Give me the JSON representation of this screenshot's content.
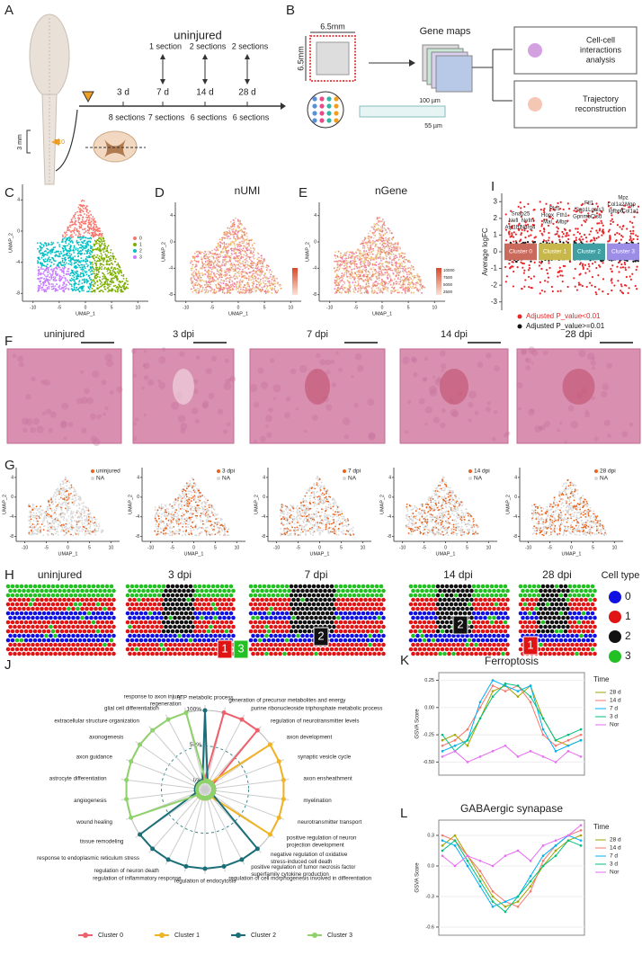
{
  "panels": {
    "A": {
      "label": "A",
      "title": "uninjured",
      "times": [
        "3 d",
        "7 d",
        "14 d",
        "28 d"
      ],
      "top_sections": [
        "1 section",
        "2 sections",
        "2 sections"
      ],
      "bottom_sections": [
        "8 sections",
        "7 sections",
        "6 sections",
        "6 sections"
      ],
      "site": "T10",
      "length": "3 mm"
    },
    "B": {
      "label": "B",
      "width": "6.5mm",
      "height": "6.5mm",
      "gene_maps": "Gene maps",
      "spot_size": "100 µm",
      "spot_gap": "55 µm",
      "analyses": [
        [
          "Cell-cell",
          "interactions",
          "analysis"
        ],
        [
          "Trajectory",
          "reconstruction"
        ]
      ]
    },
    "umap": {
      "x_label": "UMAP_1",
      "y_label": "UMAP_2",
      "xlim": [
        -12,
        12
      ],
      "ylim": [
        -9,
        6
      ],
      "xticks": [
        -10,
        -5,
        0,
        5,
        10
      ],
      "yticks": [
        -8,
        -4,
        0,
        4
      ]
    },
    "C": {
      "label": "C",
      "cluster_ids": [
        "0",
        "1",
        "2",
        "3"
      ],
      "colors": [
        "#f8766d",
        "#7cae00",
        "#00bfc4",
        "#c77cff"
      ]
    },
    "D": {
      "label": "D",
      "title": "nUMI"
    },
    "E": {
      "label": "E",
      "title": "nGene",
      "colorbar_ticks": [
        10000,
        7500,
        5000,
        2500
      ]
    },
    "I": {
      "label": "I",
      "y_label": "Average logFC",
      "ylim": [
        -3.5,
        3.5
      ],
      "yticks": [
        3,
        2,
        1,
        0,
        -1,
        -2,
        -3
      ],
      "clusters": [
        "Cluster 0",
        "Cluster 1",
        "Cluster 2",
        "Cluster 3"
      ],
      "box_colors": [
        "#c96a5c",
        "#c8b84c",
        "#3f9fa3",
        "#9c8ee6"
      ],
      "genes": [
        [
          "Snap25",
          "Nefl",
          "Nefm",
          "Atp1b1",
          "Ndrg4"
        ],
        [
          "Plp1",
          "Hopx",
          "Fth1",
          "Mal",
          "Mbp"
        ],
        [
          "Ftl1",
          "Spp1",
          "Lgals3",
          "Gpnmb",
          "Ctsd"
        ],
        [
          "Mpz",
          "Col1a2",
          "Mgp",
          "Igfbp6",
          "Col1a1"
        ]
      ],
      "legend": [
        "Adjusted P_value<0.01",
        "Adjusted P_value>=0.01"
      ],
      "legend_colors": [
        "#e8262a",
        "#111111"
      ]
    },
    "F": {
      "label": "F",
      "samples": [
        "uninjured",
        "3 dpi",
        "7 dpi",
        "14 dpi",
        "28 dpi"
      ]
    },
    "G": {
      "label": "G",
      "other": "NA",
      "highlight_color": "#e8641e"
    },
    "H": {
      "label": "H",
      "legend_title": "Cell type",
      "colors": [
        "#1010e0",
        "#e01414",
        "#111111",
        "#22c022"
      ]
    },
    "J": {
      "label": "J",
      "terms": [
        [
          "ATP metabolic process"
        ],
        [
          "generation of precursor metabolites and energy"
        ],
        [
          "purine ribonucleoside triphosphate metabolic process"
        ],
        [
          "regulation of neurotransmitter levels"
        ],
        [
          "axon development"
        ],
        [
          "synaptic vesicle cycle"
        ],
        [
          "axon ensheathment"
        ],
        [
          "myelination"
        ],
        [
          "neurotransmitter transport"
        ],
        [
          "positive regulation of neuron",
          "projection development"
        ],
        [
          "negative regulation of oxidative",
          "stress-induced cell death"
        ],
        [
          "positive regulation of tumor necrosis factor",
          "superfamily cytokine production"
        ],
        [
          "regulation of cell morphogenesis involved in differentiation"
        ],
        [
          "regulation of endocytosis"
        ],
        [
          "regulation of inflammatory response"
        ],
        [
          "regulation of neuron death"
        ],
        [
          "response to endoplasmic reticulum stress"
        ],
        [
          "tissue remodeling"
        ],
        [
          "wound healing"
        ],
        [
          "angiogenesis"
        ],
        [
          "astrocyte differentiation"
        ],
        [
          "axon guidance"
        ],
        [
          "axonogenesis"
        ],
        [
          "extracellular structure organization"
        ],
        [
          "glial cell differentiation"
        ],
        [
          "response to axon injury",
          "regeneration"
        ]
      ],
      "rlim": [
        0,
        100
      ],
      "rticks": [
        {
          "value": 0,
          "label": "0%"
        },
        {
          "value": 50,
          "label": "50%"
        },
        {
          "value": 100,
          "label": "100%"
        }
      ],
      "series": [
        {
          "name": "Cluster 0",
          "color": "#f0606a",
          "values": [
            3,
            100,
            100,
            100,
            3,
            3,
            3,
            3,
            3,
            3,
            3,
            3,
            3,
            3,
            3,
            3,
            3,
            3,
            3,
            3,
            3,
            3,
            3,
            3,
            3,
            3
          ]
        },
        {
          "name": "Cluster 1",
          "color": "#f0b323",
          "values": [
            3,
            3,
            3,
            3,
            100,
            100,
            100,
            100,
            100,
            100,
            3,
            3,
            3,
            3,
            3,
            3,
            3,
            3,
            3,
            3,
            3,
            3,
            3,
            3,
            3,
            3
          ]
        },
        {
          "name": "Cluster 2",
          "color": "#1a6e78",
          "values": [
            100,
            3,
            3,
            3,
            3,
            3,
            3,
            3,
            3,
            3,
            100,
            100,
            100,
            100,
            100,
            100,
            100,
            100,
            3,
            3,
            3,
            3,
            3,
            3,
            3,
            3
          ]
        },
        {
          "name": "Cluster 3",
          "color": "#8fd16a",
          "values": [
            3,
            3,
            3,
            3,
            3,
            3,
            3,
            3,
            3,
            3,
            3,
            3,
            3,
            3,
            3,
            3,
            3,
            3,
            100,
            100,
            100,
            100,
            100,
            100,
            100,
            100
          ]
        }
      ]
    },
    "K": {
      "label": "K",
      "title": "Ferroptosis",
      "y_label": "GSVA Score",
      "legend_title": "Time",
      "ylim": [
        -0.62,
        0.32
      ],
      "yticks": [
        {
          "value": 0.25,
          "label": "0.25"
        },
        {
          "value": 0,
          "label": "0.00"
        },
        {
          "value": -0.25,
          "label": "-0.25"
        },
        {
          "value": -0.5,
          "label": "-0.50"
        }
      ],
      "series": [
        {
          "name": "28 d",
          "color": "#a3a500",
          "values": [
            -0.3,
            -0.25,
            -0.35,
            -0.1,
            0.15,
            0.2,
            0.1,
            0.2,
            -0.1,
            -0.3,
            -0.35,
            -0.3
          ]
        },
        {
          "name": "14 d",
          "color": "#f8766d",
          "values": [
            -0.35,
            -0.3,
            -0.2,
            0,
            0.2,
            0.15,
            0.2,
            0.05,
            -0.25,
            -0.35,
            -0.3,
            -0.25
          ]
        },
        {
          "name": "7 d",
          "color": "#00b0f6",
          "values": [
            -0.4,
            -0.35,
            -0.3,
            0.05,
            0.25,
            0.2,
            0.15,
            0.2,
            -0.2,
            -0.4,
            -0.35,
            -0.3
          ]
        },
        {
          "name": "3 d",
          "color": "#00bf7d",
          "values": [
            -0.25,
            -0.4,
            -0.3,
            -0.1,
            0.1,
            0.22,
            0.2,
            0.1,
            -0.1,
            -0.3,
            -0.25,
            -0.2
          ]
        },
        {
          "name": "Nor",
          "color": "#e76bf3",
          "values": [
            -0.45,
            -0.4,
            -0.5,
            -0.45,
            -0.4,
            -0.35,
            -0.45,
            -0.4,
            -0.45,
            -0.5,
            -0.4,
            -0.45
          ]
        }
      ]
    },
    "L": {
      "label": "L",
      "title": "GABAergic synapase",
      "y_label": "GSVA Score",
      "legend_title": "Time",
      "ylim": [
        -0.68,
        0.45
      ],
      "yticks": [
        0.3,
        {
          "value": 0,
          "label": "0.0"
        },
        -0.3,
        -0.6
      ],
      "series": [
        {
          "name": "28 d",
          "color": "#a3a500",
          "values": [
            0.2,
            0.3,
            0.1,
            -0.1,
            -0.3,
            -0.4,
            -0.35,
            -0.2,
            0,
            0.15,
            0.25,
            0.3
          ]
        },
        {
          "name": "14 d",
          "color": "#f8766d",
          "values": [
            0.3,
            0.25,
            0.1,
            -0.05,
            -0.25,
            -0.35,
            -0.4,
            -0.25,
            0.05,
            0.2,
            0.3,
            0.35
          ]
        },
        {
          "name": "7 d",
          "color": "#00b0f6",
          "values": [
            0.25,
            0.2,
            0,
            -0.2,
            -0.4,
            -0.35,
            -0.3,
            -0.1,
            0.1,
            0.2,
            0.3,
            0.25
          ]
        },
        {
          "name": "3 d",
          "color": "#00bf7d",
          "values": [
            0.15,
            0.25,
            0.05,
            -0.15,
            -0.35,
            -0.45,
            -0.3,
            -0.15,
            0,
            0.1,
            0.25,
            0.2
          ]
        },
        {
          "name": "Nor",
          "color": "#e76bf3",
          "values": [
            0.1,
            0,
            0.1,
            0.05,
            0,
            0.1,
            0.15,
            0.05,
            0.2,
            0.25,
            0.3,
            0.4
          ]
        }
      ]
    }
  }
}
